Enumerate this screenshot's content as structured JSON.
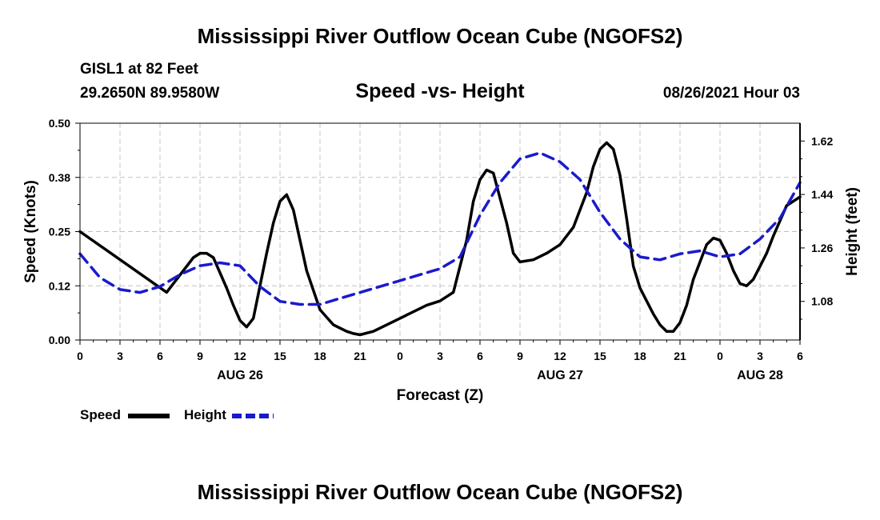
{
  "header": {
    "title": "Mississippi River Outflow Ocean Cube (NGOFS2)",
    "station": "GISL1 at 82 Feet",
    "coords": "29.2650N  89.9580W",
    "subtitle": "Speed -vs- Height",
    "datetime": "08/26/2021 Hour 03"
  },
  "footer": {
    "title": "Mississippi River Outflow Ocean Cube (NGOFS2)"
  },
  "legend": {
    "speed_label": "Speed",
    "height_label": "Height"
  },
  "colors": {
    "speed": "#000000",
    "height": "#1a1acc",
    "grid": "#c0c0c0"
  },
  "chart_data": {
    "type": "line",
    "xlabel": "Forecast (Z)",
    "ylabel_left": "Speed (Knots)",
    "ylabel_right": "Height (feet)",
    "xlim": [
      0,
      54
    ],
    "ylim_left": [
      0,
      0.5
    ],
    "ylim_right": [
      0.95,
      1.68
    ],
    "x_ticks": [
      0,
      3,
      6,
      9,
      12,
      15,
      18,
      21,
      24,
      27,
      30,
      33,
      36,
      39,
      42,
      45,
      48,
      51,
      54
    ],
    "x_tick_labels": [
      "0",
      "3",
      "6",
      "9",
      "12",
      "15",
      "18",
      "21",
      "0",
      "3",
      "6",
      "9",
      "12",
      "15",
      "18",
      "21",
      "0",
      "3",
      "6"
    ],
    "date_labels": [
      {
        "x": 12,
        "label": "AUG 26"
      },
      {
        "x": 36,
        "label": "AUG 27"
      },
      {
        "x": 51,
        "label": "AUG 28"
      }
    ],
    "y_left_ticks": [
      0.0,
      0.125,
      0.25,
      0.375,
      0.5
    ],
    "y_left_tick_labels": [
      "0.00",
      "0.12",
      "0.25",
      "0.38",
      "0.50"
    ],
    "y_right_ticks": [
      1.08,
      1.26,
      1.44,
      1.62
    ],
    "y_right_tick_labels": [
      "1.08",
      "1.26",
      "1.44",
      "1.62"
    ],
    "grid": true,
    "series": [
      {
        "name": "Speed",
        "axis": "left",
        "style": "solid",
        "x": [
          0,
          6.5,
          8.5,
          9,
          9.5,
          10,
          11,
          11.5,
          12,
          12.5,
          13,
          14,
          14.5,
          15,
          15.5,
          16,
          17,
          18,
          19,
          20,
          20.5,
          21,
          22,
          24,
          26,
          27,
          27.5,
          28,
          29,
          29.5,
          30,
          30.5,
          31,
          32,
          32.5,
          33,
          34,
          35,
          36,
          37,
          38,
          38.5,
          39,
          39.5,
          40,
          40.5,
          41,
          41.5,
          42,
          42.5,
          43,
          43.5,
          44,
          44.5,
          45,
          45.5,
          46,
          47,
          47.5,
          48,
          48.5,
          49,
          49.5,
          50,
          50.5,
          51,
          51.5,
          52,
          53,
          54
        ],
        "y": [
          0.25,
          0.11,
          0.19,
          0.2,
          0.2,
          0.19,
          0.12,
          0.08,
          0.045,
          0.03,
          0.05,
          0.2,
          0.27,
          0.32,
          0.335,
          0.3,
          0.16,
          0.07,
          0.035,
          0.02,
          0.015,
          0.012,
          0.02,
          0.05,
          0.08,
          0.09,
          0.1,
          0.11,
          0.23,
          0.32,
          0.37,
          0.392,
          0.385,
          0.27,
          0.2,
          0.18,
          0.185,
          0.2,
          0.22,
          0.26,
          0.34,
          0.4,
          0.44,
          0.455,
          0.44,
          0.38,
          0.28,
          0.17,
          0.12,
          0.09,
          0.06,
          0.035,
          0.02,
          0.02,
          0.04,
          0.08,
          0.14,
          0.22,
          0.235,
          0.23,
          0.2,
          0.16,
          0.13,
          0.125,
          0.14,
          0.17,
          0.2,
          0.24,
          0.31,
          0.33
        ]
      },
      {
        "name": "Height",
        "axis": "right",
        "style": "dashed",
        "x": [
          0,
          1.5,
          3,
          4.5,
          6,
          7.5,
          9,
          10.5,
          12,
          13.5,
          15,
          16.5,
          18,
          19.5,
          21,
          22.5,
          24,
          25.5,
          27,
          28.5,
          30,
          31.5,
          33,
          34.5,
          36,
          37.5,
          39,
          40.5,
          42,
          43.5,
          45,
          46.5,
          48,
          49.5,
          51,
          52.5,
          54
        ],
        "y": [
          1.24,
          1.16,
          1.12,
          1.11,
          1.13,
          1.17,
          1.2,
          1.21,
          1.2,
          1.13,
          1.08,
          1.07,
          1.07,
          1.09,
          1.11,
          1.13,
          1.15,
          1.17,
          1.19,
          1.23,
          1.37,
          1.48,
          1.56,
          1.58,
          1.55,
          1.49,
          1.38,
          1.29,
          1.23,
          1.22,
          1.24,
          1.25,
          1.23,
          1.24,
          1.29,
          1.36,
          1.48
        ]
      }
    ]
  }
}
